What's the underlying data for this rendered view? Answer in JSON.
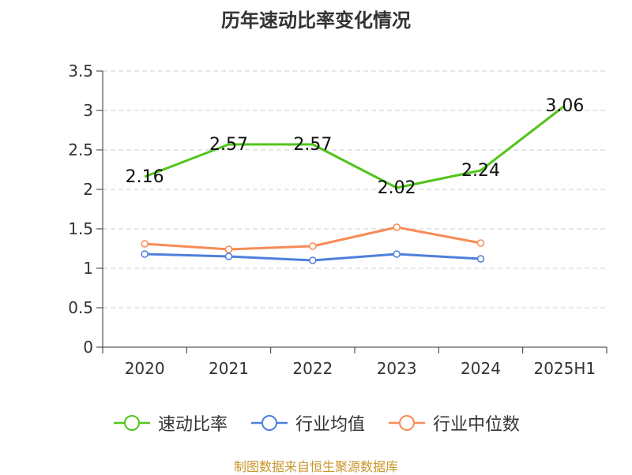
{
  "chart_data": {
    "type": "line",
    "title": "历年速动比率变化情况",
    "categories": [
      "2020",
      "2021",
      "2022",
      "2023",
      "2024",
      "2025H1"
    ],
    "ylim": [
      0,
      3.5
    ],
    "yticks": [
      "0",
      "0.5",
      "1",
      "1.5",
      "2",
      "2.5",
      "3",
      "3.5"
    ],
    "grid": true,
    "legend_position": "bottom",
    "series": [
      {
        "name": "速动比率",
        "color": "#52c41a",
        "values": [
          2.16,
          2.57,
          2.57,
          2.02,
          2.24,
          3.06
        ],
        "labels": [
          "2.16",
          "2.57",
          "2.57",
          "2.02",
          "2.24",
          "3.06"
        ],
        "show_labels": true,
        "show_markers": false
      },
      {
        "name": "行业均值",
        "color": "#4e7fdc",
        "values": [
          1.18,
          1.15,
          1.1,
          1.18,
          1.12,
          null
        ],
        "show_labels": false,
        "show_markers": true
      },
      {
        "name": "行业中位数",
        "color": "#f88b55",
        "values": [
          1.31,
          1.24,
          1.28,
          1.52,
          1.32,
          null
        ],
        "show_labels": false,
        "show_markers": true
      }
    ],
    "source": "制图数据来自恒生聚源数据库"
  }
}
